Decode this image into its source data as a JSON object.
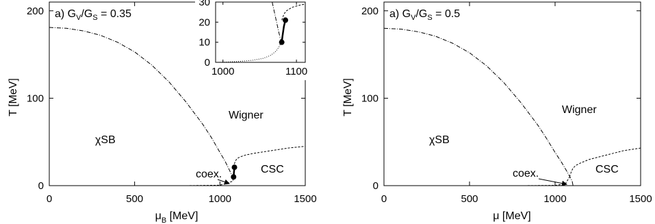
{
  "chart_data": [
    {
      "type": "line",
      "panel_label": "a) G",
      "ratio_V": "V",
      "ratio_slash": "/G",
      "ratio_S": "S",
      "ratio_value": " = 0.35",
      "xlabel_main": "μ",
      "xlabel_sub": "B",
      "xlabel_unit": " [MeV]",
      "ylabel": "T [MeV]",
      "xlim": [
        0,
        1500
      ],
      "ylim": [
        0,
        210
      ],
      "xticks": [
        0,
        500,
        1000,
        1500
      ],
      "yticks": [
        0,
        100,
        200
      ],
      "xtick_labels": [
        "0",
        "500",
        "1000",
        "1500"
      ],
      "ytick_labels": [
        "0",
        "100",
        "200"
      ],
      "regions": {
        "chiral": "χSB",
        "wigner": "Wigner",
        "csc": "CSC",
        "coex": "coex."
      },
      "series": [
        {
          "style": "dash-dot",
          "x": [
            0,
            100,
            200,
            300,
            400,
            500,
            600,
            700,
            800,
            900,
            950,
            1000,
            1030,
            1050,
            1065,
            1075,
            1080
          ],
          "y": [
            181,
            180,
            177,
            172,
            164,
            153,
            138,
            119,
            96,
            70,
            55,
            38,
            28,
            20,
            14,
            10,
            10
          ]
        },
        {
          "style": "dashed",
          "x": [
            1080,
            1085,
            1090,
            1100,
            1120,
            1150,
            1200,
            1300,
            1400,
            1500
          ],
          "y": [
            21,
            25,
            28,
            31,
            33,
            35,
            37,
            40,
            43,
            45
          ]
        },
        {
          "style": "dashed",
          "x": [
            0,
            200,
            400,
            600,
            800,
            1000,
            1075,
            1080
          ],
          "y": [
            0,
            0,
            0,
            0,
            0,
            0.5,
            5,
            10
          ]
        },
        {
          "style": "solid-coexistence",
          "x": [
            1080,
            1082,
            1085
          ],
          "y": [
            10,
            15,
            21
          ]
        }
      ],
      "points": [
        {
          "x": 1085,
          "y": 21
        },
        {
          "x": 1080,
          "y": 10
        }
      ],
      "inset": {
        "xlim": [
          990,
          1112
        ],
        "ylim": [
          0,
          30
        ],
        "xticks": [
          1000,
          1100
        ],
        "yticks": [
          0,
          10,
          20,
          30
        ],
        "xtick_labels": [
          "1000",
          "1100"
        ],
        "ytick_labels": [
          "0",
          "10",
          "20",
          "30"
        ],
        "series": [
          {
            "style": "dash-dot",
            "x": [
              1067,
              1070,
              1073,
              1076,
              1078,
              1080
            ],
            "y": [
              30,
              25,
              20,
              15,
              12,
              10
            ]
          },
          {
            "style": "dashed",
            "x": [
              1080,
              1083,
              1086,
              1090,
              1095,
              1100,
              1105,
              1112
            ],
            "y": [
              21,
              24,
              25.5,
              26.5,
              27.5,
              28,
              28.5,
              29
            ]
          },
          {
            "style": "dotted-line",
            "x": [
              990,
              1000,
              1020,
              1040,
              1055,
              1065,
              1072,
              1076,
              1078,
              1080
            ],
            "y": [
              0,
              0.1,
              0.4,
              1,
              2,
              3.5,
              5.5,
              7.5,
              9,
              10
            ]
          },
          {
            "style": "solid-coexistence",
            "x": [
              1080,
              1081,
              1083,
              1085
            ],
            "y": [
              10,
              13,
              18,
              21
            ]
          }
        ],
        "points": [
          {
            "x": 1085,
            "y": 21
          },
          {
            "x": 1080,
            "y": 10
          }
        ]
      }
    },
    {
      "type": "line",
      "panel_label": "a) G",
      "ratio_V": "V",
      "ratio_slash": "/G",
      "ratio_S": "S",
      "ratio_value": " = 0.5",
      "xlabel_main": "μ",
      "xlabel_sub": "",
      "xlabel_unit": " [MeV]",
      "ylabel": "T [MeV]",
      "xlim": [
        0,
        1500
      ],
      "ylim": [
        0,
        210
      ],
      "xticks": [
        0,
        500,
        1000,
        1500
      ],
      "yticks": [
        0,
        100,
        200
      ],
      "xtick_labels": [
        "0",
        "500",
        "1000",
        "1500"
      ],
      "ytick_labels": [
        "0",
        "100",
        "200"
      ],
      "regions": {
        "chiral": "χSB",
        "wigner": "Wigner",
        "csc": "CSC",
        "coex": "coex."
      },
      "series": [
        {
          "style": "dash-dot",
          "x": [
            0,
            100,
            200,
            300,
            400,
            500,
            600,
            700,
            800,
            900,
            950,
            1000,
            1040,
            1070,
            1090,
            1100,
            1105
          ],
          "y": [
            180,
            179,
            176,
            171,
            163,
            152,
            137,
            118,
            95,
            69,
            54,
            38,
            26,
            16,
            9,
            5,
            0
          ]
        },
        {
          "style": "dashed",
          "x": [
            1085,
            1095,
            1105,
            1120,
            1150,
            1200,
            1300,
            1400,
            1500
          ],
          "y": [
            10,
            16,
            20,
            23,
            26,
            30,
            35,
            40,
            43
          ]
        },
        {
          "style": "dashed",
          "x": [
            0,
            200,
            400,
            600,
            800,
            1000,
            1060,
            1085
          ],
          "y": [
            0,
            0,
            0,
            0,
            0,
            0.3,
            2,
            10
          ]
        }
      ],
      "points": []
    }
  ]
}
